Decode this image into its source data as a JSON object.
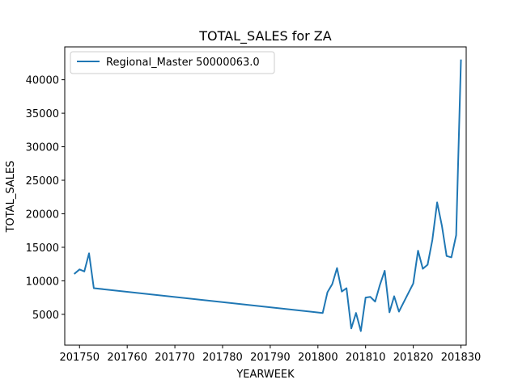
{
  "chart_data": {
    "type": "line",
    "title": "TOTAL_SALES for ZA",
    "xlabel": "YEARWEEK",
    "ylabel": "TOTAL_SALES",
    "xlim": [
      201746.9,
      201831.1
    ],
    "ylim": [
      400,
      44900
    ],
    "xticks": [
      201750,
      201760,
      201770,
      201780,
      201790,
      201800,
      201810,
      201820,
      201830
    ],
    "xtick_labels": [
      "201750",
      "201760",
      "201770",
      "201780",
      "201790",
      "201800",
      "201810",
      "201820",
      "201830"
    ],
    "yticks": [
      5000,
      10000,
      15000,
      20000,
      25000,
      30000,
      35000,
      40000
    ],
    "ytick_labels": [
      "5000",
      "10000",
      "15000",
      "20000",
      "25000",
      "30000",
      "35000",
      "40000"
    ],
    "grid": false,
    "legend_position": "upper-left",
    "series": [
      {
        "name": "Regional_Master 50000063.0",
        "color": "#1f77b4",
        "x": [
          201749,
          201750,
          201751,
          201752,
          201753,
          201801,
          201802,
          201803,
          201804,
          201805,
          201806,
          201807,
          201808,
          201809,
          201810,
          201811,
          201812,
          201813,
          201814,
          201815,
          201816,
          201817,
          201820,
          201821,
          201822,
          201823,
          201824,
          201825,
          201826,
          201827,
          201828,
          201829,
          201830
        ],
        "values": [
          11100,
          11700,
          11400,
          14100,
          8900,
          5200,
          8300,
          9500,
          11900,
          8400,
          8900,
          2900,
          5200,
          2500,
          7500,
          7600,
          6900,
          9400,
          11500,
          5300,
          7700,
          5400,
          9600,
          14500,
          11800,
          12400,
          16100,
          21700,
          18200,
          13700,
          13500,
          16800,
          42900
        ]
      }
    ]
  }
}
